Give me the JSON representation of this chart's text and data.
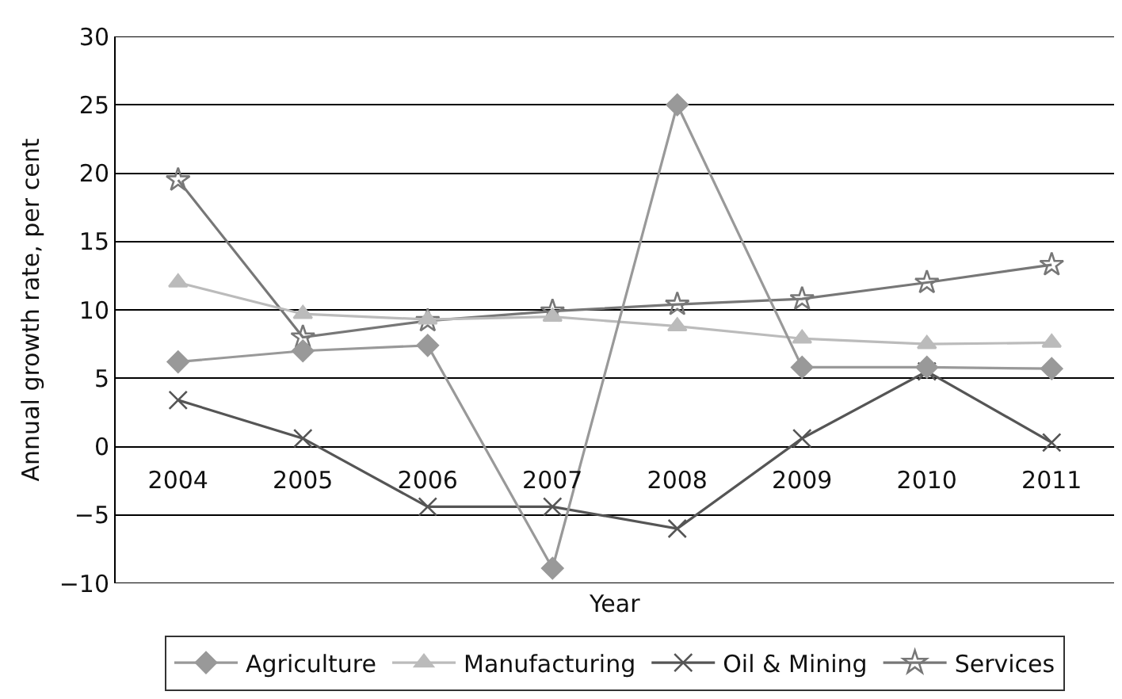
{
  "chart_data": {
    "type": "line",
    "xlabel": "Year",
    "ylabel": "Annual growth rate, per cent",
    "categories": [
      "2004",
      "2005",
      "2006",
      "2007",
      "2008",
      "2009",
      "2010",
      "2011"
    ],
    "series": [
      {
        "name": "Agriculture",
        "color": "#999999",
        "marker": "diamond",
        "values": [
          6.2,
          7.0,
          7.4,
          -8.9,
          25.0,
          5.8,
          5.8,
          5.7
        ]
      },
      {
        "name": "Manufacturing",
        "color": "#bbbbbb",
        "marker": "triangle",
        "values": [
          12.0,
          9.7,
          9.3,
          9.5,
          8.8,
          7.9,
          7.5,
          7.6
        ]
      },
      {
        "name": "Oil & Mining",
        "color": "#555555",
        "marker": "cross",
        "values": [
          3.4,
          0.6,
          -4.4,
          -4.4,
          -6.0,
          0.6,
          5.5,
          0.3
        ]
      },
      {
        "name": "Services",
        "color": "#777777",
        "marker": "star",
        "values": [
          19.5,
          8.0,
          9.2,
          9.9,
          10.4,
          10.8,
          12.0,
          13.3
        ]
      }
    ],
    "ylim": [
      -10,
      30
    ],
    "yticks": [
      {
        "value": -10,
        "label": "−10"
      },
      {
        "value": -5,
        "label": "−5"
      },
      0,
      5,
      10,
      15,
      20,
      25,
      30
    ],
    "grid": "y",
    "legend": "bottom",
    "line_style": "solid"
  }
}
